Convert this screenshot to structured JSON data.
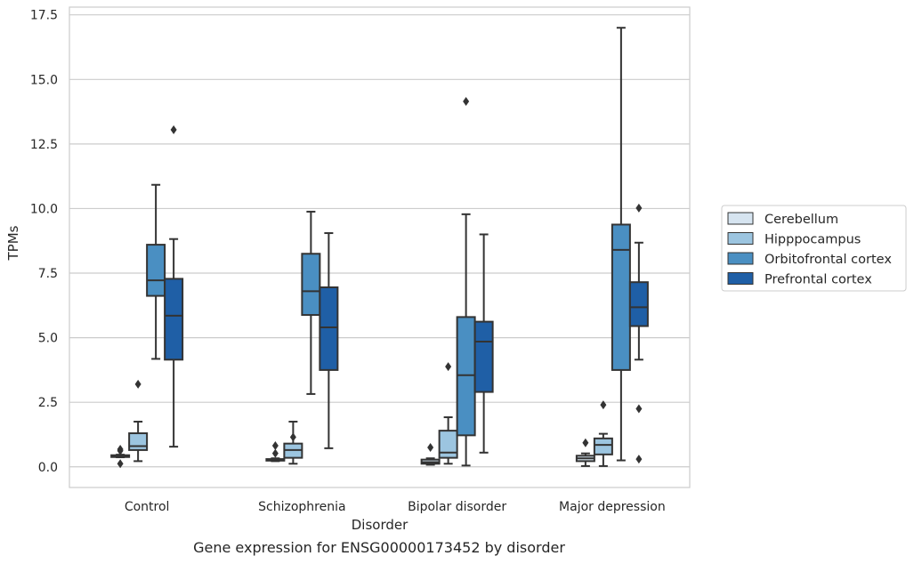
{
  "caption": "Gene expression for ENSG00000173452 by disorder",
  "chart_data": {
    "type": "box",
    "xlabel": "Disorder",
    "ylabel": "TPMs",
    "ylim": [
      -0.8,
      17.8
    ],
    "yticks": [
      0.0,
      2.5,
      5.0,
      7.5,
      10.0,
      12.5,
      15.0,
      17.5
    ],
    "ytick_labels": [
      "0.0",
      "2.5",
      "5.0",
      "7.5",
      "10.0",
      "12.5",
      "15.0",
      "17.5"
    ],
    "grid": "horizontal",
    "legend_position": "right",
    "categories": [
      "Control",
      "Schizophrenia",
      "Bipolar disorder",
      "Major depression"
    ],
    "series": [
      {
        "name": "Cerebellum",
        "color": "#d6e4f0",
        "boxes": [
          {
            "whisker_low": 0.37,
            "q1": 0.38,
            "median": 0.4,
            "q3": 0.45,
            "whisker_high": 0.47,
            "outliers": [
              0.12,
              0.62,
              0.68
            ]
          },
          {
            "whisker_low": 0.22,
            "q1": 0.24,
            "median": 0.27,
            "q3": 0.3,
            "whisker_high": 0.33,
            "outliers": [
              0.52,
              0.82
            ]
          },
          {
            "whisker_low": 0.08,
            "q1": 0.12,
            "median": 0.18,
            "q3": 0.28,
            "whisker_high": 0.33,
            "outliers": [
              0.75
            ]
          },
          {
            "whisker_low": 0.03,
            "q1": 0.22,
            "median": 0.33,
            "q3": 0.43,
            "whisker_high": 0.52,
            "outliers": [
              0.93
            ]
          }
        ]
      },
      {
        "name": "Hipppocampus",
        "color": "#9cc5e0",
        "boxes": [
          {
            "whisker_low": 0.22,
            "q1": 0.65,
            "median": 0.8,
            "q3": 1.3,
            "whisker_high": 1.75,
            "outliers": [
              3.2
            ]
          },
          {
            "whisker_low": 0.12,
            "q1": 0.35,
            "median": 0.65,
            "q3": 0.9,
            "whisker_high": 1.75,
            "outliers": [
              1.15
            ]
          },
          {
            "whisker_low": 0.12,
            "q1": 0.35,
            "median": 0.55,
            "q3": 1.4,
            "whisker_high": 1.92,
            "outliers": [
              3.88
            ]
          },
          {
            "whisker_low": 0.03,
            "q1": 0.48,
            "median": 0.85,
            "q3": 1.1,
            "whisker_high": 1.28,
            "outliers": [
              2.4
            ]
          }
        ]
      },
      {
        "name": "Orbitofrontal cortex",
        "color": "#4a8fc2",
        "boxes": [
          {
            "whisker_low": 4.18,
            "q1": 6.62,
            "median": 7.22,
            "q3": 8.6,
            "whisker_high": 10.92,
            "outliers": []
          },
          {
            "whisker_low": 2.82,
            "q1": 5.88,
            "median": 6.8,
            "q3": 8.25,
            "whisker_high": 9.88,
            "outliers": []
          },
          {
            "whisker_low": 0.05,
            "q1": 1.22,
            "median": 3.55,
            "q3": 5.8,
            "whisker_high": 9.78,
            "outliers": [
              14.15
            ]
          },
          {
            "whisker_low": 0.25,
            "q1": 3.75,
            "median": 8.4,
            "q3": 9.38,
            "whisker_high": 17.0,
            "outliers": []
          }
        ]
      },
      {
        "name": "Prefrontal cortex",
        "color": "#1f5fa6",
        "boxes": [
          {
            "whisker_low": 0.78,
            "q1": 4.15,
            "median": 5.85,
            "q3": 7.28,
            "whisker_high": 8.82,
            "outliers": [
              13.05
            ]
          },
          {
            "whisker_low": 0.72,
            "q1": 3.75,
            "median": 5.4,
            "q3": 6.95,
            "whisker_high": 9.05,
            "outliers": []
          },
          {
            "whisker_low": 0.55,
            "q1": 2.9,
            "median": 4.85,
            "q3": 5.62,
            "whisker_high": 9.0,
            "outliers": []
          },
          {
            "whisker_low": 4.15,
            "q1": 5.45,
            "median": 6.18,
            "q3": 7.15,
            "whisker_high": 8.68,
            "outliers": [
              0.3,
              2.25,
              10.02
            ]
          }
        ]
      }
    ]
  }
}
